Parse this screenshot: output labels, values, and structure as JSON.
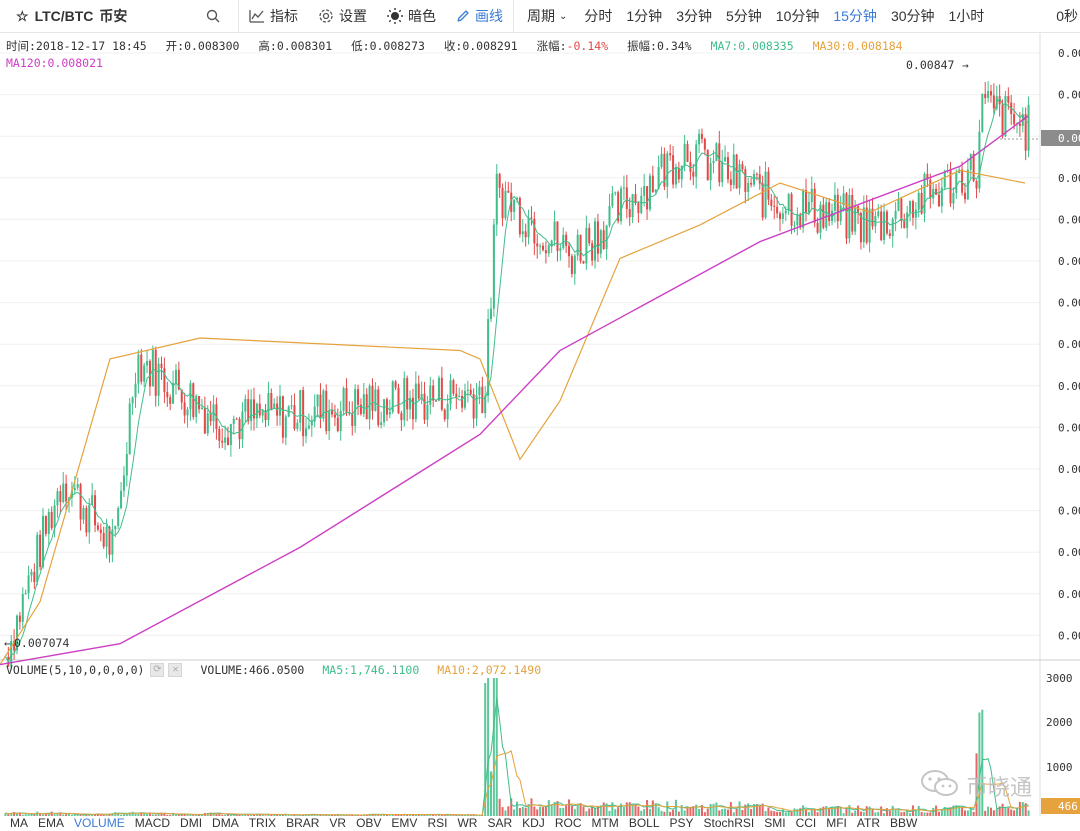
{
  "toolbar": {
    "symbol": "LTC/BTC",
    "market": "币安",
    "tools": [
      {
        "label": "指标",
        "icon": "indicator-icon",
        "active": false
      },
      {
        "label": "设置",
        "icon": "gear-icon",
        "active": false
      },
      {
        "label": "暗色",
        "icon": "sun-icon",
        "active": false
      },
      {
        "label": "画线",
        "icon": "pen-icon",
        "active": true
      }
    ],
    "periods_label": "周期",
    "periods": [
      {
        "label": "分时",
        "active": false
      },
      {
        "label": "1分钟",
        "active": false
      },
      {
        "label": "3分钟",
        "active": false
      },
      {
        "label": "5分钟",
        "active": false
      },
      {
        "label": "10分钟",
        "active": false
      },
      {
        "label": "15分钟",
        "active": true
      },
      {
        "label": "30分钟",
        "active": false
      },
      {
        "label": "1小时",
        "active": false
      }
    ],
    "countdown": "0秒"
  },
  "info": {
    "time": "时间:2018-12-17 18:45",
    "open": "开:0.008300",
    "high": "高:0.008301",
    "low": "低:0.008273",
    "close": "收:0.008291",
    "change_label": "涨幅:",
    "change_value": "-0.14%",
    "amplitude": "振幅:0.34%",
    "ma7": "MA7:0.008335",
    "ma30": "MA30:0.008184",
    "ma120": "MA120:0.008021"
  },
  "volume_info": {
    "title": "VOLUME(5,10,0,0,0,0)",
    "volume": "VOLUME:466.0500",
    "ma5": "MA5:1,746.1100",
    "ma10": "MA10:2,072.1490"
  },
  "chart_data": {
    "type": "candlestick",
    "price_axis_ticks": [
      "0.00",
      "0.00",
      "0.00",
      "0.00",
      "0.00",
      "0.00",
      "0.00",
      "0.00",
      "0.00",
      "0.00",
      "0.00",
      "0.00",
      "0.00",
      "0.00",
      "0.00"
    ],
    "current_price_label": "0.00",
    "price_range": [
      0.00705,
      0.00854
    ],
    "max_label": "0.00847",
    "min_label": "0.007074",
    "volume_axis_ticks": [
      "3000",
      "2000",
      "1000"
    ],
    "volume_current_label": "466",
    "volume_range": [
      0,
      3000
    ],
    "colors": {
      "up": "#3fbe8a",
      "down": "#e24a4a",
      "ma7": "#3fbe8a",
      "ma30": "#e6a23c",
      "ma120": "#cc3fc4"
    },
    "segments": [
      {
        "n": 20,
        "from": 0.00709,
        "to": 0.0075,
        "vol": 60
      },
      {
        "n": 18,
        "from": 0.00752,
        "to": 0.00735,
        "vol": 40
      },
      {
        "n": 8,
        "from": 0.00735,
        "to": 0.0078,
        "vol": 60
      },
      {
        "n": 30,
        "from": 0.0078,
        "to": 0.00765,
        "vol": 50
      },
      {
        "n": 90,
        "from": 0.00765,
        "to": 0.00772,
        "vol": 30
      },
      {
        "n": 5,
        "from": 0.00772,
        "to": 0.0082,
        "vol": 2400
      },
      {
        "n": 25,
        "from": 0.0082,
        "to": 0.00805,
        "vol": 250
      },
      {
        "n": 40,
        "from": 0.00805,
        "to": 0.0083,
        "vol": 220
      },
      {
        "n": 30,
        "from": 0.0083,
        "to": 0.00818,
        "vol": 200
      },
      {
        "n": 35,
        "from": 0.00818,
        "to": 0.00812,
        "vol": 150
      },
      {
        "n": 35,
        "from": 0.00812,
        "to": 0.00825,
        "vol": 150
      },
      {
        "n": 3,
        "from": 0.00825,
        "to": 0.0084,
        "vol": 1800
      },
      {
        "n": 16,
        "from": 0.0084,
        "to": 0.00835,
        "vol": 200
      }
    ],
    "ma30_points": [
      [
        0,
        0.00707
      ],
      [
        40,
        0.00722
      ],
      [
        110,
        0.0078
      ],
      [
        200,
        0.00785
      ],
      [
        460,
        0.00782
      ],
      [
        480,
        0.0078
      ],
      [
        520,
        0.00756
      ],
      [
        560,
        0.0077
      ],
      [
        620,
        0.00804
      ],
      [
        700,
        0.00812
      ],
      [
        780,
        0.00822
      ],
      [
        870,
        0.00815
      ],
      [
        960,
        0.00825
      ],
      [
        1025,
        0.00822
      ]
    ],
    "ma120_points": [
      [
        0,
        0.00707
      ],
      [
        120,
        0.00712
      ],
      [
        300,
        0.00735
      ],
      [
        480,
        0.00762
      ],
      [
        560,
        0.00782
      ],
      [
        760,
        0.00808
      ],
      [
        960,
        0.00826
      ],
      [
        1028,
        0.00838
      ]
    ]
  },
  "bottom_tabs": [
    "MA",
    "EMA",
    "VOLUME",
    "MACD",
    "DMI",
    "DMA",
    "TRIX",
    "BRAR",
    "VR",
    "OBV",
    "EMV",
    "RSI",
    "WR",
    "SAR",
    "KDJ",
    "ROC",
    "MTM",
    "BOLL",
    "PSY",
    "StochRSI",
    "SMI",
    "CCI",
    "MFI",
    "ATR",
    "BBW"
  ],
  "active_tab": "VOLUME",
  "watermark": "币晓通"
}
